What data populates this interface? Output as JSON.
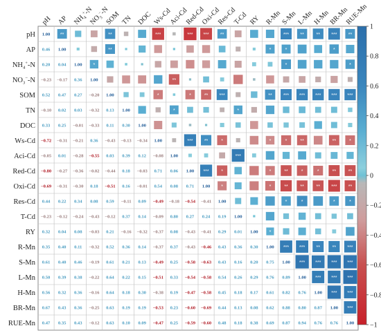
{
  "chart_data": {
    "type": "heatmap",
    "variables": [
      "pH",
      "AP",
      "NH4+-N",
      "NO3--N",
      "SOM",
      "TN",
      "DOC",
      "Ws-Cd",
      "Aci-Cd",
      "Red-Cd",
      "Oxi-Cd",
      "Res-Cd",
      "T-Cd",
      "RY",
      "R-Mn",
      "S-Mn",
      "L-Mn",
      "H-Mn",
      "BR-Mn",
      "RUE-Mn"
    ],
    "row_labels": [
      "pH",
      "AP",
      "NH",
      "NO",
      "SOM",
      "TN",
      "DOC",
      "Ws-Cd",
      "Aci-Cd",
      "Red-Cd",
      "Oxi-Cd",
      "Res-Cd",
      "T-Cd",
      "RY",
      "R-Mn",
      "S-Mn",
      "L-Mn",
      "H-Mn",
      "BR-Mn",
      "RUE-Mn"
    ],
    "col_labels": [
      "pH",
      "AP",
      "NH",
      "NO",
      "SOM",
      "TN",
      "DOC",
      "Ws-Cd",
      "Aci-Cd",
      "Red-Cd",
      "Oxi-Cd",
      "Res-Cd",
      "T-Cd",
      "RY",
      "R-Mn",
      "S-Mn",
      "L-Mn",
      "H-Mn",
      "BR-Mn",
      "RUE-Mn"
    ],
    "label_sub": {
      "NH": "4",
      "NO": "3",
      "NH_tail": "-N",
      "NO_tail": "-N",
      "NH_sup": "+",
      "NO_sup": "−"
    },
    "lower_values": [
      [
        1.0
      ],
      [
        0.46,
        1.0
      ],
      [
        0.2,
        0.04,
        1.0
      ],
      [
        -0.23,
        -0.17,
        0.36,
        1.0
      ],
      [
        0.52,
        0.47,
        0.27,
        -0.2,
        1.0
      ],
      [
        -0.1,
        0.02,
        0.03,
        -0.32,
        0.13,
        1.0
      ],
      [
        0.33,
        0.25,
        -0.01,
        -0.33,
        0.11,
        0.3,
        1.0
      ],
      [
        -0.72,
        -0.31,
        -0.21,
        0.36,
        -0.43,
        -0.13,
        -0.34,
        1.0
      ],
      [
        -0.05,
        0.01,
        -0.28,
        -0.55,
        0.03,
        0.39,
        0.12,
        -0.08,
        1.0
      ],
      [
        -0.8,
        -0.27,
        -0.36,
        -0.02,
        -0.44,
        0.18,
        -0.03,
        0.71,
        0.06,
        1.0
      ],
      [
        -0.69,
        -0.31,
        -0.3,
        0.18,
        -0.51,
        0.16,
        -0.01,
        0.54,
        0.08,
        0.71,
        1.0
      ],
      [
        0.44,
        0.22,
        0.34,
        0.08,
        0.59,
        -0.11,
        0.09,
        -0.49,
        -0.18,
        -0.54,
        -0.41,
        1.0
      ],
      [
        -0.23,
        -0.12,
        -0.24,
        -0.43,
        -0.12,
        0.37,
        0.14,
        -0.09,
        0.8,
        0.27,
        0.24,
        0.19,
        1.0
      ],
      [
        0.32,
        0.04,
        0.08,
        -0.03,
        0.21,
        -0.16,
        -0.32,
        -0.37,
        0.08,
        -0.43,
        -0.41,
        0.29,
        0.01,
        1.0
      ],
      [
        0.35,
        0.4,
        0.11,
        -0.32,
        0.52,
        0.36,
        0.14,
        -0.37,
        0.37,
        -0.43,
        -0.46,
        0.43,
        0.36,
        0.3,
        1.0
      ],
      [
        0.61,
        0.4,
        0.46,
        -0.19,
        0.61,
        0.21,
        0.13,
        -0.49,
        0.25,
        -0.58,
        -0.63,
        0.43,
        0.16,
        0.2,
        0.75,
        1.0
      ],
      [
        0.5,
        0.39,
        0.38,
        -0.22,
        0.64,
        0.22,
        0.15,
        -0.51,
        0.33,
        -0.54,
        -0.58,
        0.54,
        0.26,
        0.29,
        0.76,
        0.89,
        1.0
      ],
      [
        0.56,
        0.32,
        0.36,
        -0.16,
        0.64,
        0.18,
        0.3,
        -0.38,
        0.19,
        -0.47,
        -0.58,
        0.45,
        0.18,
        0.17,
        0.61,
        0.82,
        0.76,
        1.0
      ],
      [
        0.67,
        0.43,
        0.36,
        -0.25,
        0.63,
        0.19,
        0.19,
        -0.53,
        0.23,
        -0.6,
        -0.69,
        0.44,
        0.13,
        0.08,
        0.62,
        0.88,
        0.8,
        0.87,
        1.0
      ],
      [
        0.47,
        0.35,
        0.43,
        -0.12,
        0.63,
        0.1,
        0.09,
        -0.47,
        0.25,
        -0.59,
        -0.6,
        0.48,
        0.18,
        0.38,
        0.69,
        0.87,
        0.94,
        0.76,
        0.76,
        1.0
      ]
    ],
    "upper_stars": [
      {
        "row": 0,
        "col": 1,
        "text": "**"
      },
      {
        "row": 0,
        "col": 4,
        "text": "**"
      },
      {
        "row": 0,
        "col": 7,
        "text": "***"
      },
      {
        "row": 0,
        "col": 9,
        "text": "***"
      },
      {
        "row": 0,
        "col": 10,
        "text": "***"
      },
      {
        "row": 0,
        "col": 11,
        "text": "**"
      },
      {
        "row": 0,
        "col": 15,
        "text": "***"
      },
      {
        "row": 0,
        "col": 16,
        "text": "**"
      },
      {
        "row": 0,
        "col": 17,
        "text": "**"
      },
      {
        "row": 0,
        "col": 18,
        "text": "***"
      },
      {
        "row": 0,
        "col": 19,
        "text": "**"
      },
      {
        "row": 1,
        "col": 4,
        "text": "**"
      },
      {
        "row": 1,
        "col": 14,
        "text": "*"
      },
      {
        "row": 1,
        "col": 15,
        "text": "*"
      },
      {
        "row": 1,
        "col": 18,
        "text": "*"
      },
      {
        "row": 2,
        "col": 3,
        "text": "*"
      },
      {
        "row": 2,
        "col": 15,
        "text": "*"
      },
      {
        "row": 2,
        "col": 19,
        "text": "*"
      },
      {
        "row": 3,
        "col": 8,
        "text": "**"
      },
      {
        "row": 4,
        "col": 7,
        "text": "*"
      },
      {
        "row": 4,
        "col": 9,
        "text": "*"
      },
      {
        "row": 4,
        "col": 10,
        "text": "**"
      },
      {
        "row": 4,
        "col": 11,
        "text": "***"
      },
      {
        "row": 4,
        "col": 14,
        "text": "**"
      },
      {
        "row": 4,
        "col": 15,
        "text": "***"
      },
      {
        "row": 4,
        "col": 16,
        "text": "***"
      },
      {
        "row": 4,
        "col": 17,
        "text": "***"
      },
      {
        "row": 4,
        "col": 18,
        "text": "***"
      },
      {
        "row": 4,
        "col": 19,
        "text": "***"
      },
      {
        "row": 5,
        "col": 8,
        "text": "*"
      },
      {
        "row": 5,
        "col": 12,
        "text": "*"
      },
      {
        "row": 7,
        "col": 9,
        "text": "***"
      },
      {
        "row": 7,
        "col": 10,
        "text": "**"
      },
      {
        "row": 7,
        "col": 11,
        "text": "*"
      },
      {
        "row": 7,
        "col": 14,
        "text": "*"
      },
      {
        "row": 7,
        "col": 15,
        "text": "*"
      },
      {
        "row": 7,
        "col": 16,
        "text": "**"
      },
      {
        "row": 7,
        "col": 18,
        "text": "**"
      },
      {
        "row": 7,
        "col": 19,
        "text": "*"
      },
      {
        "row": 8,
        "col": 12,
        "text": "***"
      },
      {
        "row": 9,
        "col": 10,
        "text": "***"
      },
      {
        "row": 9,
        "col": 11,
        "text": "*"
      },
      {
        "row": 9,
        "col": 14,
        "text": "*"
      },
      {
        "row": 9,
        "col": 15,
        "text": "**"
      },
      {
        "row": 9,
        "col": 16,
        "text": "*"
      },
      {
        "row": 9,
        "col": 17,
        "text": "*"
      },
      {
        "row": 9,
        "col": 18,
        "text": "**"
      },
      {
        "row": 9,
        "col": 19,
        "text": "**"
      },
      {
        "row": 10,
        "col": 11,
        "text": "*"
      },
      {
        "row": 10,
        "col": 14,
        "text": "*"
      },
      {
        "row": 10,
        "col": 15,
        "text": "**"
      },
      {
        "row": 10,
        "col": 16,
        "text": "**"
      },
      {
        "row": 10,
        "col": 17,
        "text": "**"
      },
      {
        "row": 10,
        "col": 18,
        "text": "***"
      },
      {
        "row": 10,
        "col": 19,
        "text": "**"
      },
      {
        "row": 11,
        "col": 15,
        "text": "*"
      },
      {
        "row": 11,
        "col": 16,
        "text": "*"
      },
      {
        "row": 11,
        "col": 18,
        "text": "*"
      },
      {
        "row": 11,
        "col": 19,
        "text": "*"
      },
      {
        "row": 13,
        "col": 14,
        "text": "*"
      },
      {
        "row": 14,
        "col": 15,
        "text": "***"
      },
      {
        "row": 14,
        "col": 16,
        "text": "***"
      },
      {
        "row": 14,
        "col": 17,
        "text": "**"
      },
      {
        "row": 14,
        "col": 18,
        "text": "**"
      },
      {
        "row": 14,
        "col": 19,
        "text": "***"
      },
      {
        "row": 15,
        "col": 16,
        "text": "***"
      },
      {
        "row": 15,
        "col": 17,
        "text": "***"
      },
      {
        "row": 15,
        "col": 18,
        "text": "***"
      },
      {
        "row": 15,
        "col": 19,
        "text": "***"
      },
      {
        "row": 16,
        "col": 17,
        "text": "***"
      },
      {
        "row": 16,
        "col": 18,
        "text": "***"
      },
      {
        "row": 16,
        "col": 19,
        "text": "***"
      },
      {
        "row": 17,
        "col": 18,
        "text": "***"
      },
      {
        "row": 17,
        "col": 19,
        "text": "***"
      },
      {
        "row": 18,
        "col": 19,
        "text": "***"
      }
    ],
    "colorbar": {
      "ticks": [
        "1",
        "0.8",
        "0.6",
        "0.4",
        "0.2",
        "0",
        "−0.2",
        "−0.4",
        "−0.6",
        "−0.8",
        "−1"
      ],
      "range": [
        -1,
        1
      ]
    },
    "colors": {
      "positive": "#2c6fab",
      "neutral": "#ffffff",
      "negative": "#c8202a",
      "zero_band": "#6ec3d6",
      "grid": "#9a9a9a"
    },
    "legend_placement": "right",
    "grid": true
  }
}
